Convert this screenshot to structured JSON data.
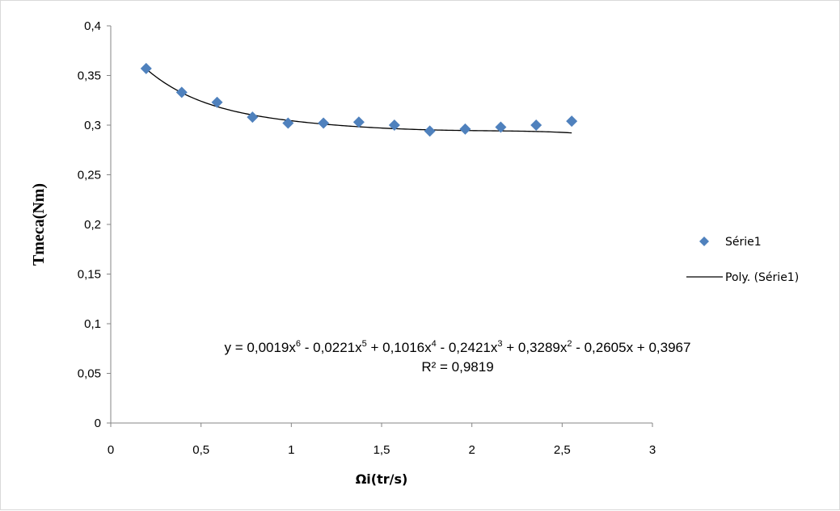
{
  "chart_data": {
    "type": "scatter",
    "xlabel": "Ωi(tr/s)",
    "ylabel": "Tmeca(Nm)",
    "xlim": [
      0,
      3
    ],
    "ylim": [
      0,
      0.4
    ],
    "x_ticks": [
      "0",
      "0,5",
      "1",
      "1,5",
      "2",
      "2,5",
      "3"
    ],
    "y_ticks": [
      "0",
      "0,05",
      "0,1",
      "0,15",
      "0,2",
      "0,25",
      "0,3",
      "0,35",
      "0,4"
    ],
    "series": [
      {
        "name": "Série1",
        "marker": "diamond",
        "color": "#4f81bd",
        "x": [
          0.196,
          0.393,
          0.589,
          0.785,
          0.982,
          1.178,
          1.374,
          1.571,
          1.767,
          1.963,
          2.16,
          2.356,
          2.553
        ],
        "y": [
          0.357,
          0.333,
          0.323,
          0.308,
          0.302,
          0.302,
          0.303,
          0.3,
          0.294,
          0.296,
          0.298,
          0.3,
          0.304
        ]
      }
    ],
    "trendline": {
      "name": "Poly. (Série1)",
      "type": "polynomial",
      "color": "#000000",
      "coefficients": [
        0.3967,
        -0.2605,
        0.3289,
        -0.2421,
        0.1016,
        -0.0221,
        0.0019
      ],
      "equation_main": "y = 0,0019x",
      "equation_terms": [
        {
          "sup": "6",
          "text": " - 0,0221x"
        },
        {
          "sup": "5",
          "text": " + 0,1016x"
        },
        {
          "sup": "4",
          "text": " - 0,2421x"
        },
        {
          "sup": "3",
          "text": " + 0,3289x"
        },
        {
          "sup": "2",
          "text": " - 0,2605x + 0,3967"
        }
      ],
      "r_squared": "R² = 0,9819"
    },
    "legend_position": "right",
    "grid": false
  }
}
